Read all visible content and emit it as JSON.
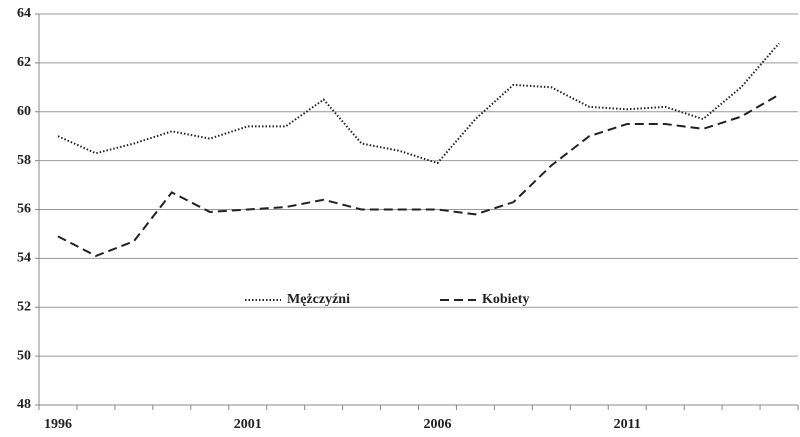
{
  "chart_data": {
    "type": "line",
    "categories": [
      "1996",
      null,
      null,
      null,
      null,
      "2001",
      null,
      null,
      null,
      null,
      "2006",
      null,
      null,
      null,
      null,
      "2011",
      null,
      null,
      null,
      null
    ],
    "series": [
      {
        "name": "Mężczyźni",
        "color": "#222222",
        "style": "dotted",
        "values": [
          59.0,
          58.3,
          58.7,
          59.2,
          58.9,
          59.4,
          59.4,
          60.5,
          58.7,
          58.4,
          57.9,
          59.7,
          61.1,
          61.0,
          60.2,
          60.1,
          60.2,
          59.7,
          61.0,
          62.8
        ]
      },
      {
        "name": "Kobiety",
        "color": "#222222",
        "style": "dashed",
        "values": [
          54.9,
          54.1,
          54.7,
          56.7,
          55.9,
          56.0,
          56.1,
          56.4,
          56.0,
          56.0,
          56.0,
          55.8,
          56.3,
          57.8,
          59.0,
          59.5,
          59.5,
          59.3,
          59.8,
          60.7
        ]
      }
    ],
    "ylim": [
      48,
      64
    ],
    "yticks": [
      48,
      50,
      52,
      54,
      56,
      58,
      60,
      62,
      64
    ],
    "grid": true
  }
}
